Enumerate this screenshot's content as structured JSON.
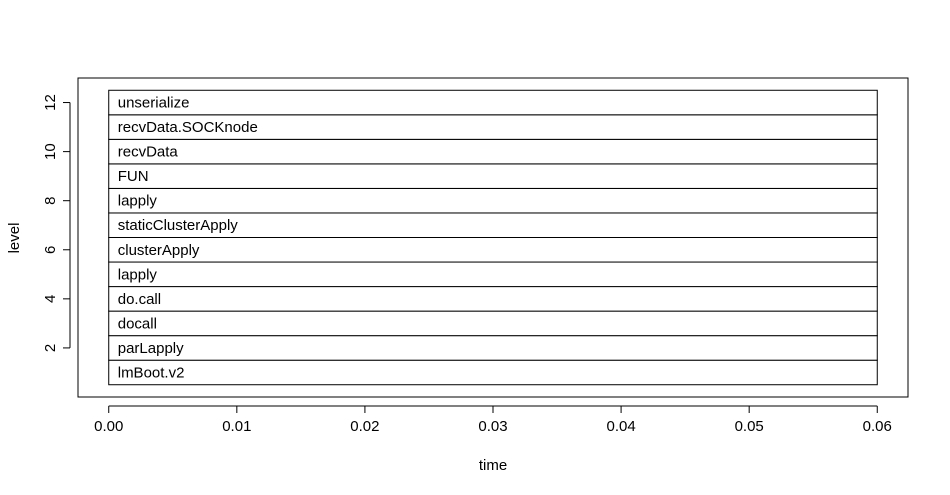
{
  "chart_data": {
    "type": "flame",
    "title": "",
    "xlabel": "time",
    "ylabel": "level",
    "xlim": [
      -0.0024,
      0.0624
    ],
    "ylim": [
      0.0,
      13.0
    ],
    "x_ticks": [
      0.0,
      0.01,
      0.02,
      0.03,
      0.04,
      0.05,
      0.06
    ],
    "x_tick_labels": [
      "0.00",
      "0.01",
      "0.02",
      "0.03",
      "0.04",
      "0.05",
      "0.06"
    ],
    "y_ticks": [
      2,
      4,
      6,
      8,
      10,
      12
    ],
    "y_tick_labels": [
      "2",
      "4",
      "6",
      "8",
      "10",
      "12"
    ],
    "grid": false,
    "bars": [
      {
        "level": 1,
        "label": "lmBoot.v2",
        "start": 0.0,
        "end": 0.06
      },
      {
        "level": 2,
        "label": "parLapply",
        "start": 0.0,
        "end": 0.06
      },
      {
        "level": 3,
        "label": "docall",
        "start": 0.0,
        "end": 0.06
      },
      {
        "level": 4,
        "label": "do.call",
        "start": 0.0,
        "end": 0.06
      },
      {
        "level": 5,
        "label": "lapply",
        "start": 0.0,
        "end": 0.06
      },
      {
        "level": 6,
        "label": "clusterApply",
        "start": 0.0,
        "end": 0.06
      },
      {
        "level": 7,
        "label": "staticClusterApply",
        "start": 0.0,
        "end": 0.06
      },
      {
        "level": 8,
        "label": "lapply",
        "start": 0.0,
        "end": 0.06
      },
      {
        "level": 9,
        "label": "FUN",
        "start": 0.0,
        "end": 0.06
      },
      {
        "level": 10,
        "label": "recvData",
        "start": 0.0,
        "end": 0.06
      },
      {
        "level": 11,
        "label": "recvData.SOCKnode",
        "start": 0.0,
        "end": 0.06
      },
      {
        "level": 12,
        "label": "unserialize",
        "start": 0.0,
        "end": 0.06
      }
    ]
  }
}
